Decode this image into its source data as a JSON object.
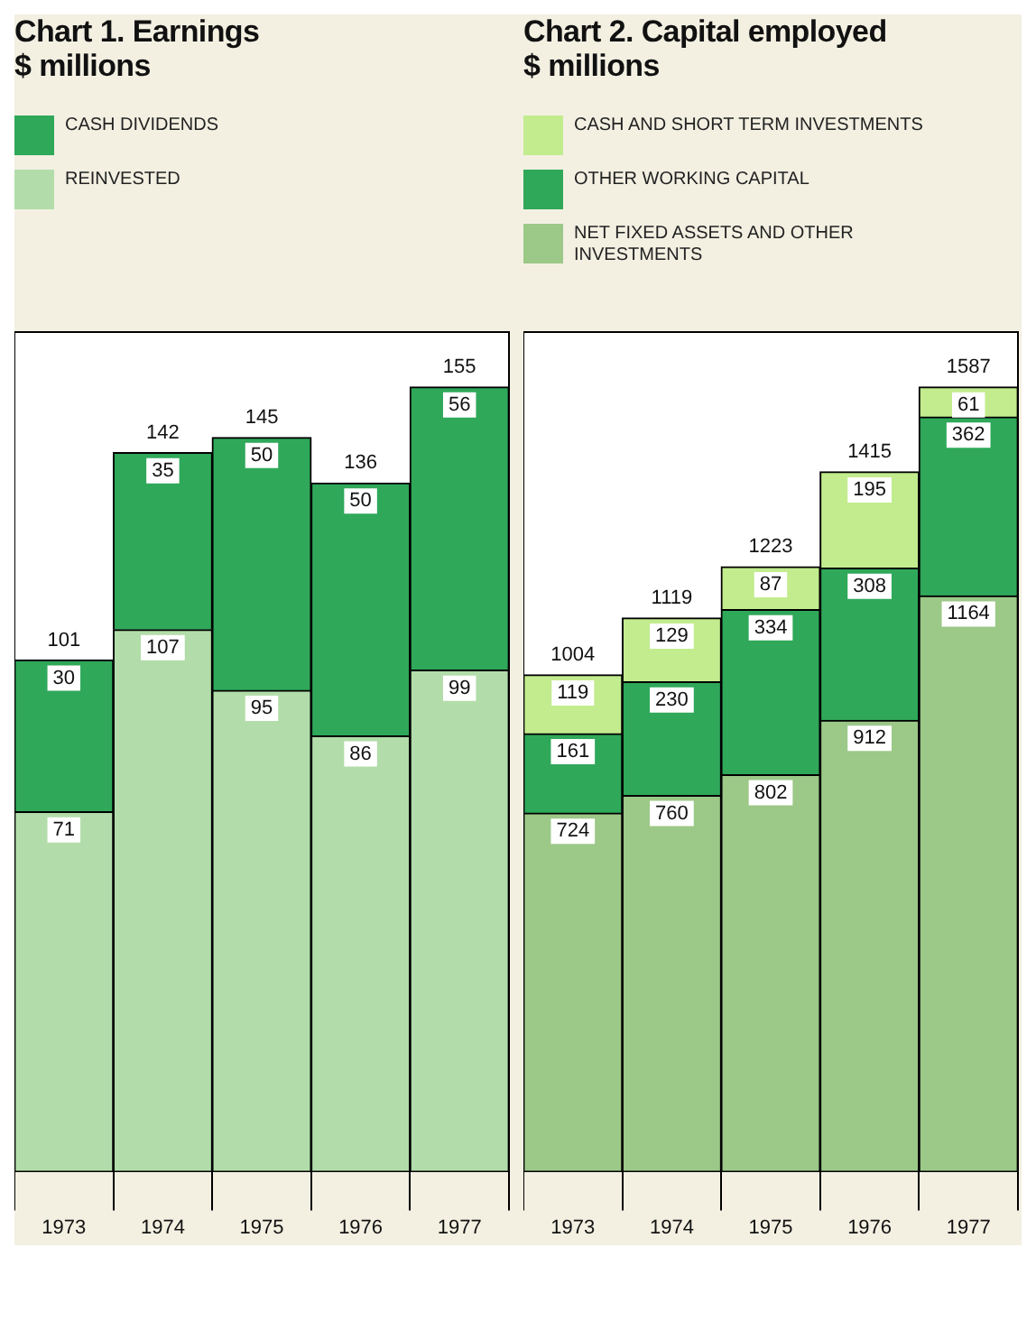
{
  "chart_data": [
    {
      "type": "bar",
      "title": "Chart 1. Earnings",
      "subtitle": "$ millions",
      "categories": [
        "1973",
        "1974",
        "1975",
        "1976",
        "1977"
      ],
      "stacked": true,
      "legend": "top left",
      "data_labels": true,
      "totals": [
        "101",
        "142",
        "145",
        "136",
        "155"
      ],
      "series": [
        {
          "name": "REINVESTED",
          "color": "#b2ddaa",
          "values": [
            71,
            107,
            95,
            86,
            99
          ]
        },
        {
          "name": "CASH DIVIDENDS",
          "color": "#2fa85a",
          "values": [
            30,
            35,
            50,
            50,
            56
          ]
        }
      ]
    },
    {
      "type": "bar",
      "title": "Chart 2. Capital employed",
      "subtitle": "$ millions",
      "categories": [
        "1973",
        "1974",
        "1975",
        "1976",
        "1977"
      ],
      "stacked": true,
      "legend": "top left",
      "data_labels": true,
      "totals": [
        "1004",
        "1119",
        "1223",
        "1415",
        "1587"
      ],
      "series": [
        {
          "name": "NET FIXED ASSETS AND OTHER INVESTMENTS",
          "color": "#9cc888",
          "values": [
            724,
            760,
            802,
            912,
            1164
          ]
        },
        {
          "name": "OTHER WORKING CAPITAL",
          "color": "#2fa85a",
          "values": [
            161,
            230,
            334,
            308,
            362
          ]
        },
        {
          "name": "CASH AND SHORT TERM INVESTMENTS",
          "color": "#c2ec8e",
          "values": [
            119,
            129,
            87,
            195,
            61
          ]
        }
      ]
    }
  ]
}
